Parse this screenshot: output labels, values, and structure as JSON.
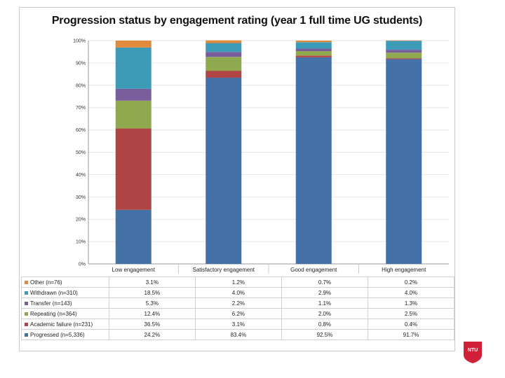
{
  "chart_data": {
    "type": "stacked-bar",
    "title": "Progression status by engagement rating (year 1 full time UG students)",
    "categories": [
      "Low engagement",
      "Satisfactory engagement",
      "Good engagement",
      "High engagement"
    ],
    "yticks": [
      "0%",
      "10%",
      "20%",
      "30%",
      "40%",
      "50%",
      "60%",
      "70%",
      "80%",
      "90%",
      "100%"
    ],
    "ylim": [
      0,
      100
    ],
    "series": [
      {
        "name": "Progressed (n=5,336)",
        "color": "#4472a8",
        "values": [
          24.2,
          83.4,
          92.5,
          91.7
        ],
        "labels": [
          "24.2%",
          "83.4%",
          "92.5%",
          "91.7%"
        ]
      },
      {
        "name": "Academic failure (n=231)",
        "color": "#b04545",
        "values": [
          36.5,
          3.1,
          0.8,
          0.4
        ],
        "labels": [
          "36.5%",
          "3.1%",
          "0.8%",
          "0.4%"
        ]
      },
      {
        "name": "Repeating (n=364)",
        "color": "#8faa4e",
        "values": [
          12.4,
          6.2,
          2.0,
          2.5
        ],
        "labels": [
          "12.4%",
          "6.2%",
          "2.0%",
          "2.5%"
        ]
      },
      {
        "name": "Transfer (n=143)",
        "color": "#7a5e9c",
        "values": [
          5.3,
          2.2,
          1.1,
          1.3
        ],
        "labels": [
          "5.3%",
          "2.2%",
          "1.1%",
          "1.3%"
        ]
      },
      {
        "name": "Withdrawn (n=310)",
        "color": "#3e9bb8",
        "values": [
          18.5,
          4.0,
          2.9,
          4.0
        ],
        "labels": [
          "18.5%",
          "4.0%",
          "2.9%",
          "4.0%"
        ]
      },
      {
        "name": "Other (n=76)",
        "color": "#e08a3c",
        "values": [
          3.1,
          1.2,
          0.7,
          0.2
        ],
        "labels": [
          "3.1%",
          "1.2%",
          "0.7%",
          "0.2%"
        ]
      }
    ]
  },
  "logo": {
    "text": "NTU",
    "color": "#d0203a"
  }
}
